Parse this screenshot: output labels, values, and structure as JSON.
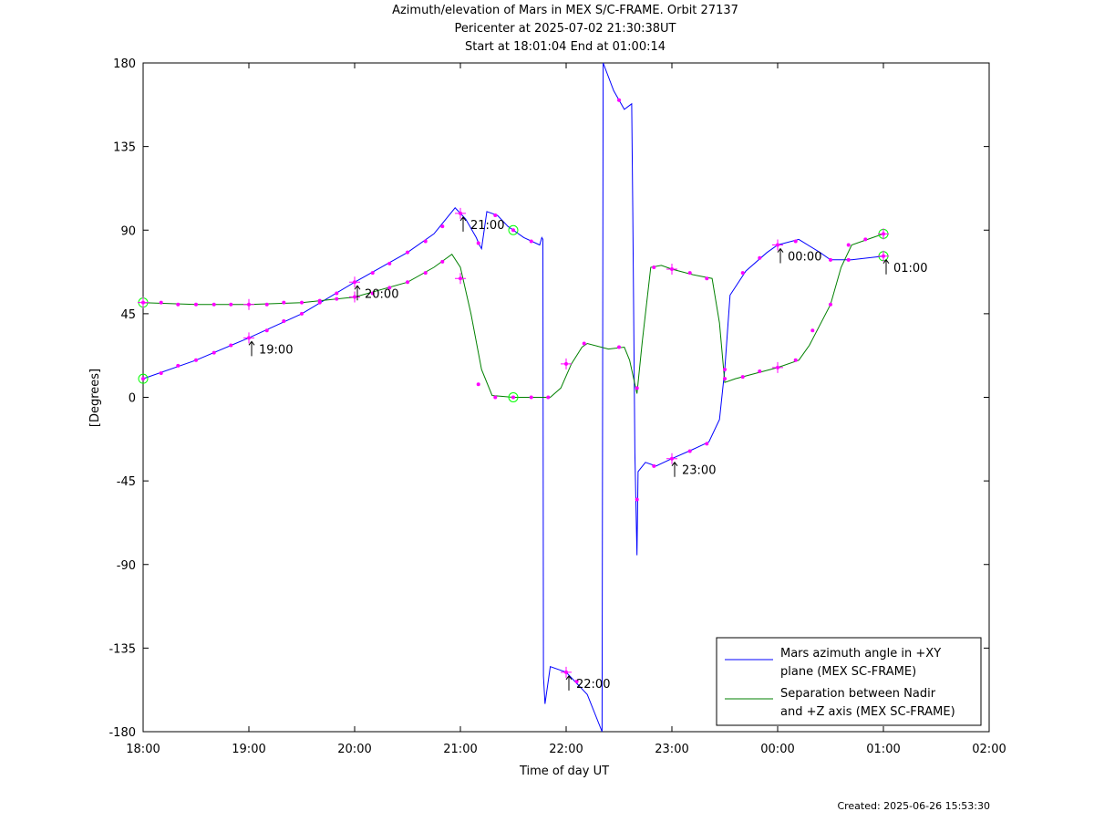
{
  "titles": {
    "line1": "Azimuth/elevation of Mars in MEX S/C-FRAME.  Orbit 27137",
    "line2": "Pericenter at 2025-07-02 21:30:38UT",
    "line3": "Start at 18:01:04 End at 01:00:14"
  },
  "footer": {
    "created": "Created: 2025-06-26 15:53:30"
  },
  "chart_data": {
    "type": "line",
    "xlabel": "Time of day UT",
    "ylabel": "[Degrees]",
    "x_unit": "hours since 18:00 UT",
    "xlim": [
      0,
      8
    ],
    "ylim": [
      -180,
      180
    ],
    "xticks": [
      0,
      1,
      2,
      3,
      4,
      5,
      6,
      7,
      8
    ],
    "xtick_labels": [
      "18:00",
      "19:00",
      "20:00",
      "21:00",
      "22:00",
      "23:00",
      "00:00",
      "01:00",
      "02:00"
    ],
    "yticks": [
      180,
      135,
      90,
      45,
      0,
      -45,
      -90,
      -135,
      -180
    ],
    "ytick_labels": [
      "180",
      "135",
      "90",
      "45",
      "0",
      "-45",
      "-90",
      "-135",
      "-180"
    ],
    "legend_position": "bottom-right",
    "series": [
      {
        "name": "Mars azimuth angle in +XY plane (MEX SC-FRAME)",
        "legend_lines": [
          "Mars azimuth angle in +XY",
          "plane (MEX SC-FRAME)"
        ],
        "color": "#0000ff",
        "points": [
          [
            0.0,
            10
          ],
          [
            0.5,
            20
          ],
          [
            1.0,
            32
          ],
          [
            1.5,
            45
          ],
          [
            2.0,
            62
          ],
          [
            2.5,
            78
          ],
          [
            2.75,
            88
          ],
          [
            2.95,
            102
          ],
          [
            3.05,
            96
          ],
          [
            3.15,
            86
          ],
          [
            3.18,
            82
          ],
          [
            3.2,
            80
          ],
          [
            3.25,
            100
          ],
          [
            3.35,
            98
          ],
          [
            3.45,
            92
          ],
          [
            3.6,
            86
          ],
          [
            3.75,
            82
          ],
          [
            3.77,
            86
          ],
          [
            3.78,
            85
          ],
          [
            3.785,
            -150
          ],
          [
            3.8,
            -165
          ],
          [
            3.85,
            -145
          ],
          [
            4.0,
            -148
          ],
          [
            4.2,
            -160
          ],
          [
            4.34,
            -180
          ],
          [
            4.35,
            180
          ],
          [
            4.45,
            165
          ],
          [
            4.55,
            155
          ],
          [
            4.62,
            158
          ],
          [
            4.63,
            100
          ],
          [
            4.65,
            -30
          ],
          [
            4.67,
            -85
          ],
          [
            4.68,
            -40
          ],
          [
            4.75,
            -35
          ],
          [
            4.85,
            -37
          ],
          [
            5.0,
            -33
          ],
          [
            5.2,
            -28
          ],
          [
            5.35,
            -24
          ],
          [
            5.45,
            -12
          ],
          [
            5.5,
            15
          ],
          [
            5.55,
            55
          ],
          [
            5.7,
            68
          ],
          [
            5.9,
            78
          ],
          [
            6.0,
            82
          ],
          [
            6.2,
            85
          ],
          [
            6.4,
            78
          ],
          [
            6.5,
            74
          ],
          [
            6.7,
            74
          ],
          [
            7.0,
            76
          ]
        ],
        "markers": [
          [
            0.0,
            10
          ],
          [
            0.17,
            13
          ],
          [
            0.33,
            17
          ],
          [
            0.5,
            20
          ],
          [
            0.67,
            24
          ],
          [
            0.83,
            28
          ],
          [
            1.0,
            32
          ],
          [
            1.17,
            36
          ],
          [
            1.33,
            41
          ],
          [
            1.5,
            45
          ],
          [
            1.67,
            51
          ],
          [
            1.83,
            56
          ],
          [
            2.0,
            62
          ],
          [
            2.17,
            67
          ],
          [
            2.33,
            72
          ],
          [
            2.5,
            78
          ],
          [
            2.67,
            84
          ],
          [
            2.83,
            92
          ],
          [
            3.0,
            99
          ],
          [
            3.17,
            83
          ],
          [
            3.33,
            98
          ],
          [
            3.5,
            90
          ],
          [
            3.67,
            84
          ],
          [
            4.0,
            -148
          ],
          [
            4.1,
            -153
          ],
          [
            4.5,
            160
          ],
          [
            4.67,
            -55
          ],
          [
            4.83,
            -37
          ],
          [
            5.0,
            -33
          ],
          [
            5.17,
            -29
          ],
          [
            5.33,
            -25
          ],
          [
            5.5,
            15
          ],
          [
            5.67,
            67
          ],
          [
            5.83,
            75
          ],
          [
            6.0,
            82
          ],
          [
            6.17,
            84
          ],
          [
            6.5,
            74
          ],
          [
            6.67,
            74
          ],
          [
            7.0,
            76
          ]
        ],
        "cross_markers": [
          [
            1.0,
            32
          ],
          [
            2.0,
            62
          ],
          [
            3.0,
            99
          ],
          [
            4.0,
            -148
          ],
          [
            5.0,
            -33
          ],
          [
            6.0,
            82
          ],
          [
            7.0,
            76
          ]
        ],
        "circle_markers": [
          [
            0.0,
            10
          ],
          [
            3.5,
            90
          ],
          [
            7.0,
            76
          ]
        ]
      },
      {
        "name": "Separation between Nadir and +Z axis (MEX SC-FRAME)",
        "legend_lines": [
          "Separation between Nadir",
          "and +Z axis (MEX SC-FRAME)"
        ],
        "color": "#008000",
        "points": [
          [
            0.0,
            51
          ],
          [
            0.5,
            50
          ],
          [
            1.0,
            50
          ],
          [
            1.5,
            51
          ],
          [
            2.0,
            54
          ],
          [
            2.5,
            62
          ],
          [
            2.75,
            70
          ],
          [
            2.92,
            77
          ],
          [
            3.0,
            70
          ],
          [
            3.1,
            45
          ],
          [
            3.2,
            15
          ],
          [
            3.3,
            1
          ],
          [
            3.5,
            0
          ],
          [
            3.85,
            0
          ],
          [
            3.95,
            5
          ],
          [
            4.05,
            18
          ],
          [
            4.15,
            27
          ],
          [
            4.2,
            29
          ],
          [
            4.4,
            26
          ],
          [
            4.55,
            27
          ],
          [
            4.6,
            20
          ],
          [
            4.67,
            2
          ],
          [
            4.72,
            30
          ],
          [
            4.8,
            70
          ],
          [
            4.9,
            71
          ],
          [
            5.0,
            69
          ],
          [
            5.2,
            66
          ],
          [
            5.38,
            64
          ],
          [
            5.45,
            40
          ],
          [
            5.5,
            8
          ],
          [
            5.6,
            10
          ],
          [
            5.8,
            13
          ],
          [
            6.0,
            16
          ],
          [
            6.2,
            20
          ],
          [
            6.3,
            28
          ],
          [
            6.5,
            50
          ],
          [
            6.6,
            70
          ],
          [
            6.7,
            82
          ],
          [
            6.9,
            86
          ],
          [
            7.0,
            88
          ]
        ],
        "markers": [
          [
            0.0,
            51
          ],
          [
            0.17,
            51
          ],
          [
            0.33,
            50
          ],
          [
            0.5,
            50
          ],
          [
            0.67,
            50
          ],
          [
            0.83,
            50
          ],
          [
            1.0,
            50
          ],
          [
            1.17,
            50
          ],
          [
            1.33,
            51
          ],
          [
            1.5,
            51
          ],
          [
            1.67,
            52
          ],
          [
            1.83,
            53
          ],
          [
            2.0,
            54
          ],
          [
            2.17,
            56
          ],
          [
            2.33,
            59
          ],
          [
            2.5,
            62
          ],
          [
            2.67,
            67
          ],
          [
            2.83,
            73
          ],
          [
            3.0,
            64
          ],
          [
            3.17,
            7
          ],
          [
            3.33,
            0
          ],
          [
            3.5,
            0
          ],
          [
            3.67,
            0
          ],
          [
            3.83,
            0
          ],
          [
            4.0,
            18
          ],
          [
            4.17,
            29
          ],
          [
            4.5,
            27
          ],
          [
            4.67,
            5
          ],
          [
            4.83,
            70
          ],
          [
            5.0,
            69
          ],
          [
            5.17,
            67
          ],
          [
            5.33,
            64
          ],
          [
            5.5,
            10
          ],
          [
            5.67,
            11
          ],
          [
            5.83,
            14
          ],
          [
            6.0,
            16
          ],
          [
            6.17,
            20
          ],
          [
            6.33,
            36
          ],
          [
            6.5,
            50
          ],
          [
            6.67,
            82
          ],
          [
            6.83,
            85
          ],
          [
            7.0,
            88
          ]
        ],
        "cross_markers": [
          [
            0.0,
            51
          ],
          [
            1.0,
            50
          ],
          [
            2.0,
            54
          ],
          [
            3.0,
            64
          ],
          [
            4.0,
            18
          ],
          [
            5.0,
            69
          ],
          [
            6.0,
            16
          ],
          [
            7.0,
            88
          ]
        ],
        "circle_markers": [
          [
            0.0,
            51
          ],
          [
            3.5,
            0
          ],
          [
            7.0,
            88
          ]
        ]
      }
    ],
    "annotations": [
      {
        "label": "19:00",
        "x": 1.0,
        "y": 32
      },
      {
        "label": "20:00",
        "x": 2.0,
        "y": 62
      },
      {
        "label": "21:00",
        "x": 3.0,
        "y": 99
      },
      {
        "label": "22:00",
        "x": 4.0,
        "y": -148
      },
      {
        "label": "23:00",
        "x": 5.0,
        "y": -33
      },
      {
        "label": "00:00",
        "x": 6.0,
        "y": 82
      },
      {
        "label": "01:00",
        "x": 7.0,
        "y": 76
      }
    ],
    "marker_color": "#ff00ff",
    "circle_color": "#00ff00"
  }
}
